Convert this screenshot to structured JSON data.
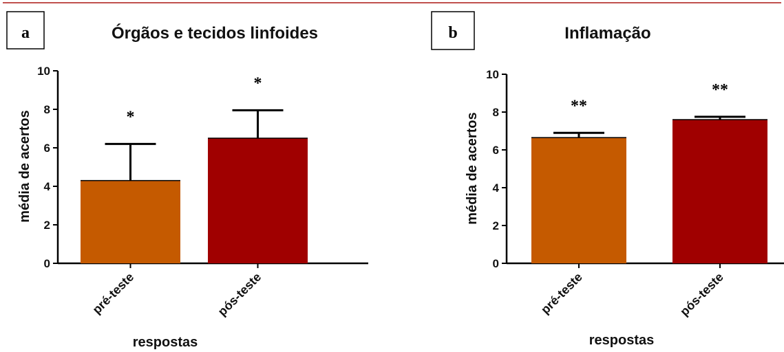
{
  "header": {
    "top_rule_color": "#c0504d"
  },
  "chart_data": [
    {
      "type": "bar",
      "panel_label": "a",
      "title": "Órgãos e tecidos linfoides",
      "xlabel": "respostas",
      "ylabel": "média de acertos",
      "categories": [
        "pré-teste",
        "pós-teste"
      ],
      "values": [
        4.3,
        6.5
      ],
      "error_upper": [
        6.2,
        7.95
      ],
      "significance": [
        "*",
        "*"
      ],
      "colors": [
        "#c55a00",
        "#a00000"
      ],
      "ylim": [
        0,
        10
      ],
      "yticks": [
        "0",
        "2",
        "4",
        "6",
        "8",
        "10"
      ],
      "grid": false,
      "legend": "none"
    },
    {
      "type": "bar",
      "panel_label": "b",
      "title": "Inflamação",
      "xlabel": "respostas",
      "ylabel": "média de acertos",
      "categories": [
        "pré-teste",
        "pós-teste"
      ],
      "values": [
        6.65,
        7.6
      ],
      "error_upper": [
        6.9,
        7.75
      ],
      "significance": [
        "**",
        "**"
      ],
      "colors": [
        "#c55a00",
        "#a00000"
      ],
      "ylim": [
        0,
        10
      ],
      "yticks": [
        "0",
        "2",
        "4",
        "6",
        "8",
        "10"
      ],
      "grid": false,
      "legend": "none"
    }
  ]
}
